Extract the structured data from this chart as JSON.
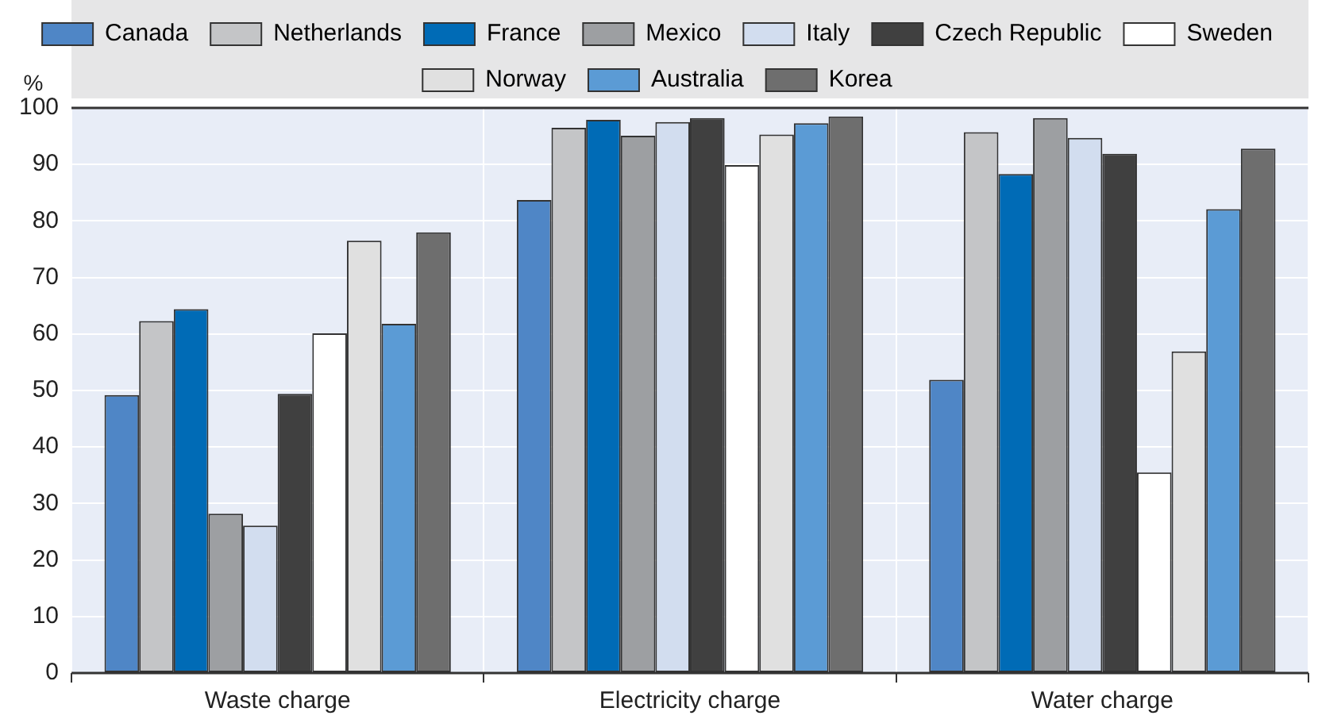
{
  "chart_data": {
    "type": "bar",
    "ylabel": "%",
    "categories": [
      "Waste charge",
      "Electricity charge",
      "Water charge"
    ],
    "series": [
      {
        "name": "Canada",
        "color": "#4f86c6",
        "values": [
          49.2,
          83.7,
          51.9
        ]
      },
      {
        "name": "Netherlands",
        "color": "#c4c5c7",
        "values": [
          62.3,
          96.5,
          95.7
        ]
      },
      {
        "name": "France",
        "color": "#006bb6",
        "values": [
          64.4,
          97.9,
          88.3
        ]
      },
      {
        "name": "Mexico",
        "color": "#9d9fa2",
        "values": [
          28.2,
          95.1,
          98.2
        ]
      },
      {
        "name": "Italy",
        "color": "#d2ddef",
        "values": [
          26.1,
          97.5,
          94.7
        ]
      },
      {
        "name": "Czech Republic",
        "color": "#404040",
        "values": [
          49.4,
          98.2,
          91.9
        ]
      },
      {
        "name": "Sweden",
        "color": "#ffffff",
        "values": [
          60.1,
          89.9,
          35.5
        ]
      },
      {
        "name": "Norway",
        "color": "#e0e0e0",
        "values": [
          76.5,
          95.3,
          56.9
        ]
      },
      {
        "name": "Australia",
        "color": "#5b9bd5",
        "values": [
          61.8,
          97.3,
          82.1
        ]
      },
      {
        "name": "Korea",
        "color": "#6e6e6e",
        "values": [
          78.0,
          98.5,
          92.8
        ]
      }
    ],
    "ylim": [
      0,
      100
    ],
    "yticks": [
      0,
      10,
      20,
      30,
      40,
      50,
      60,
      70,
      80,
      90,
      100
    ],
    "grid": true,
    "legend": "top"
  }
}
